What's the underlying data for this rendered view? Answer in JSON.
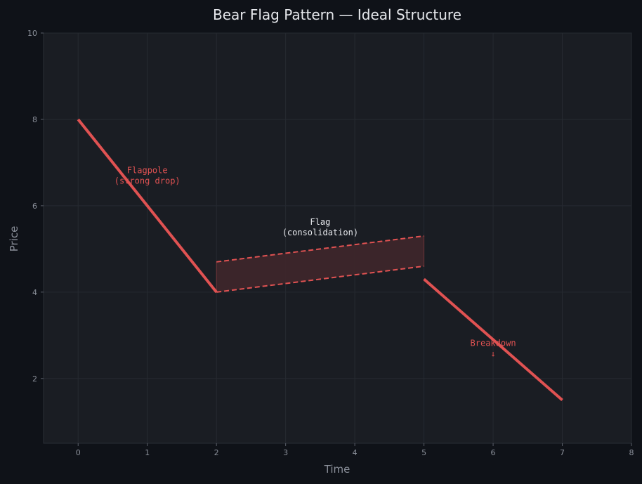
{
  "chart_data": {
    "type": "line",
    "title": "Bear Flag Pattern — Ideal Structure",
    "xlabel": "Time",
    "ylabel": "Price",
    "xlim": [
      -0.5,
      8
    ],
    "ylim": [
      0.5,
      10
    ],
    "xticks": [
      "0",
      "1",
      "2",
      "3",
      "4",
      "5",
      "6",
      "7",
      "8"
    ],
    "yticks": [
      "2",
      "4",
      "6",
      "8",
      "10"
    ],
    "grid": true,
    "colors": {
      "background": "#0f1218",
      "plot_background": "#1a1d23",
      "accent": "#e05252",
      "flag_fill": "#3d262b",
      "grid": "#262a31",
      "text": "#e6e8ec",
      "muted": "#8b909a"
    },
    "flagpole": {
      "x": [
        0,
        2
      ],
      "y": [
        8,
        4
      ]
    },
    "flag_upper": {
      "x": [
        2,
        5
      ],
      "y": [
        4.7,
        5.3
      ]
    },
    "flag_lower": {
      "x": [
        2,
        5
      ],
      "y": [
        4.0,
        4.6
      ]
    },
    "breakdown": {
      "x": [
        5,
        7
      ],
      "y": [
        4.3,
        1.5
      ]
    },
    "annotations": [
      {
        "lines": [
          "Flagpole",
          "(strong drop)"
        ],
        "x": 1.0,
        "y": 6.7,
        "color": "accent"
      },
      {
        "lines": [
          "Flag",
          "(consolidation)"
        ],
        "x": 3.5,
        "y": 5.5,
        "color": "text"
      },
      {
        "lines": [
          "Breakdown",
          "↓"
        ],
        "x": 6.0,
        "y": 2.7,
        "color": "accent"
      }
    ]
  }
}
